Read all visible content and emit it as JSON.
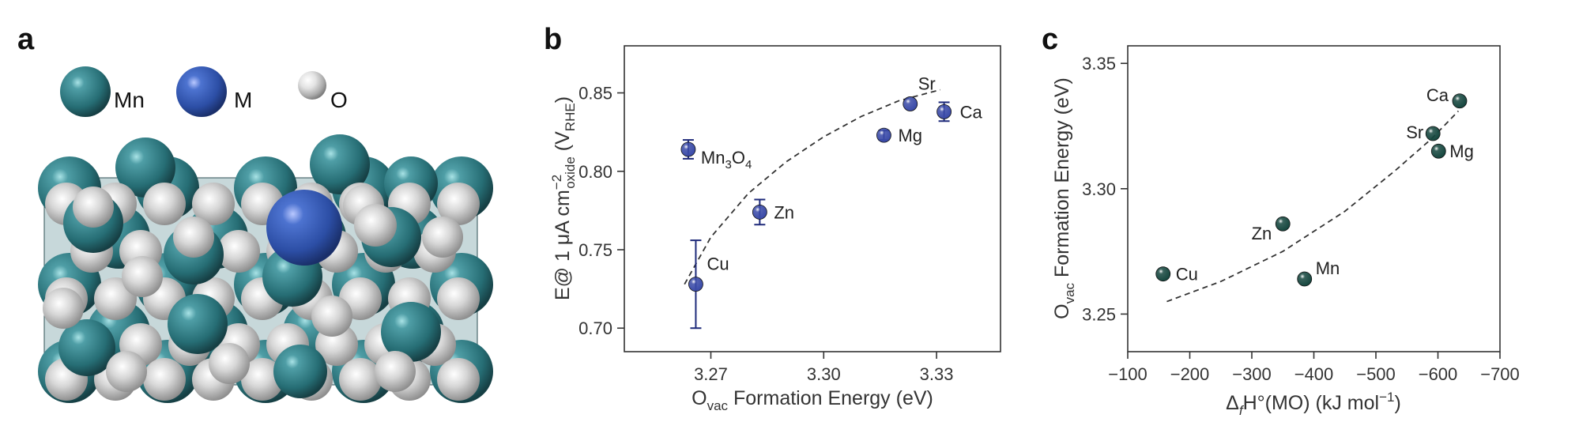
{
  "panel_a": {
    "letter": "a",
    "legend": [
      {
        "label": "Mn",
        "color": "#2f7c86"
      },
      {
        "label": "M",
        "color": "#3a5fb8"
      },
      {
        "label": "O",
        "color": "#d9d9d9"
      }
    ]
  },
  "chart_data": [
    {
      "letter": "b",
      "type": "scatter",
      "xlabel_main": "O",
      "xlabel_sub": "vac",
      "xlabel_rest": " Formation Energy (eV)",
      "ylabel_parts": {
        "a": "E@ 1 ",
        "mu": "μ",
        "b": "A cm",
        "sup": "−2",
        "sub": "oxide",
        "c": " (V",
        "sub2": "RHE",
        "d": ")"
      },
      "xlim": [
        3.247,
        3.347
      ],
      "ylim": [
        0.685,
        0.88
      ],
      "xticks": [
        3.27,
        3.3,
        3.33
      ],
      "xtick_labels": [
        "3.27",
        "3.30",
        "3.33"
      ],
      "yticks": [
        0.7,
        0.75,
        0.8,
        0.85
      ],
      "ytick_labels": [
        "0.70",
        "0.75",
        "0.80",
        "0.85"
      ],
      "marker_color": "#3a4aa8",
      "points": [
        {
          "label": "Cu",
          "x": 3.266,
          "y": 0.728,
          "err": 0.028
        },
        {
          "label": "Zn",
          "x": 3.283,
          "y": 0.774,
          "err": 0.008
        },
        {
          "label": "Mg",
          "x": 3.316,
          "y": 0.823,
          "err": 0.003
        },
        {
          "label": "Sr",
          "x": 3.323,
          "y": 0.843,
          "err": 0.0
        },
        {
          "label": "Ca",
          "x": 3.332,
          "y": 0.838,
          "err": 0.006
        },
        {
          "label": "Mn3O4",
          "label_main": "Mn",
          "label_sub": "3",
          "label_rest": "O",
          "label_sub2": "4",
          "x": 3.264,
          "y": 0.814,
          "err": 0.006
        }
      ],
      "fit_curve": {
        "x": [
          3.263,
          3.27,
          3.28,
          3.29,
          3.3,
          3.31,
          3.32,
          3.331
        ],
        "y": [
          0.728,
          0.758,
          0.786,
          0.806,
          0.822,
          0.835,
          0.845,
          0.852
        ]
      }
    },
    {
      "letter": "c",
      "type": "scatter",
      "xlabel_parts": {
        "a": "Δ",
        "sub": "f",
        "b": "H°(MO) (kJ mol",
        "sup": "−1",
        "c": ")"
      },
      "ylabel_main": "O",
      "ylabel_sub": "vac",
      "ylabel_rest": " Formation Energy (eV)",
      "xlim": [
        -100,
        -700
      ],
      "ylim": [
        3.235,
        3.357
      ],
      "xticks": [
        -100,
        -200,
        -300,
        -400,
        -500,
        -600,
        -700
      ],
      "xtick_labels": [
        "−100",
        "−200",
        "−300",
        "−400",
        "−500",
        "−600",
        "−700"
      ],
      "yticks": [
        3.25,
        3.3,
        3.35
      ],
      "ytick_labels": [
        "3.25",
        "3.30",
        "3.35"
      ],
      "marker_color": "#15463e",
      "points": [
        {
          "label": "Cu",
          "x": -157,
          "y": 3.266
        },
        {
          "label": "Zn",
          "x": -350,
          "y": 3.286
        },
        {
          "label": "Mn",
          "x": -385,
          "y": 3.264
        },
        {
          "label": "Sr",
          "x": -592,
          "y": 3.322
        },
        {
          "label": "Mg",
          "x": -601,
          "y": 3.315
        },
        {
          "label": "Ca",
          "x": -635,
          "y": 3.335
        }
      ],
      "fit_curve": {
        "x": [
          -163,
          -250,
          -350,
          -450,
          -530,
          -590,
          -633
        ],
        "y": [
          3.255,
          3.263,
          3.275,
          3.291,
          3.307,
          3.32,
          3.331
        ]
      }
    }
  ]
}
